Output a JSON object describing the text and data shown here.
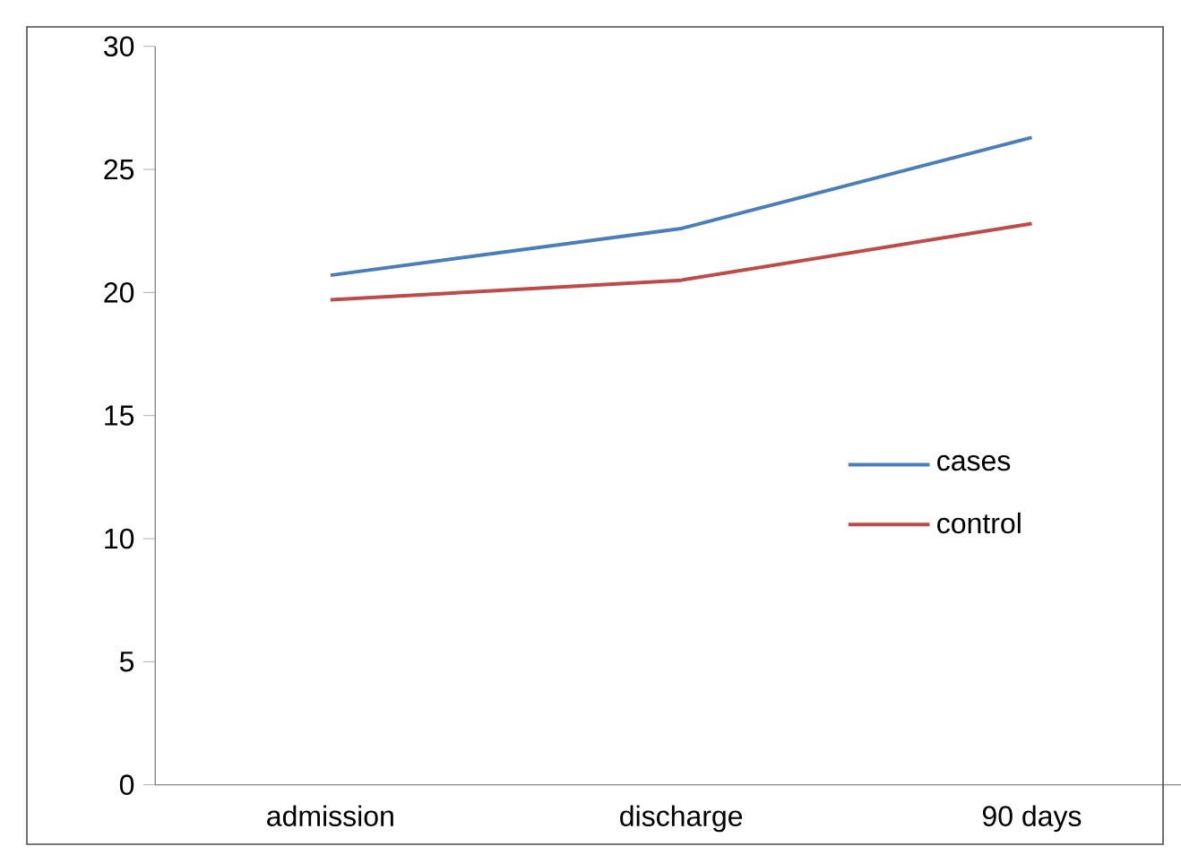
{
  "chart_data": {
    "type": "line",
    "categories": [
      "admission",
      "discharge",
      "90 days"
    ],
    "series": [
      {
        "name": "cases",
        "color": "#4a7ebb",
        "values": [
          20.7,
          22.6,
          26.3
        ]
      },
      {
        "name": "control",
        "color": "#be4b48",
        "values": [
          19.7,
          20.5,
          22.8
        ]
      }
    ],
    "ylim": [
      0,
      30
    ],
    "yticks": [
      0,
      5,
      10,
      15,
      20,
      25,
      30
    ],
    "grid": false,
    "legend": "right",
    "marker": "none",
    "line_style": "solid"
  }
}
